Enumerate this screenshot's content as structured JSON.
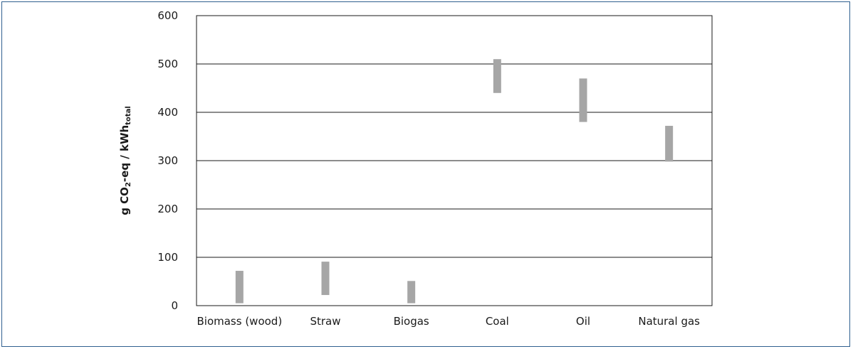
{
  "chart_data": {
    "type": "bar",
    "subtype": "floating-range",
    "categories": [
      "Biomass (wood)",
      "Straw",
      "Biogas",
      "Coal",
      "Oil",
      "Natural gas"
    ],
    "ranges": [
      {
        "low": 5,
        "high": 72
      },
      {
        "low": 22,
        "high": 91
      },
      {
        "low": 5,
        "high": 51
      },
      {
        "low": 440,
        "high": 510
      },
      {
        "low": 380,
        "high": 470
      },
      {
        "low": 298,
        "high": 372
      }
    ],
    "ylabel_main": "g CO",
    "ylabel_sub": "2",
    "ylabel_mid": "-eq / kWh",
    "ylabel_sub2": "total",
    "ylim": [
      0,
      600
    ],
    "yticks": [
      "0",
      "100",
      "200",
      "300",
      "400",
      "500",
      "600"
    ],
    "grid": true,
    "legend": "none",
    "bar_color": "#a6a6a6"
  }
}
